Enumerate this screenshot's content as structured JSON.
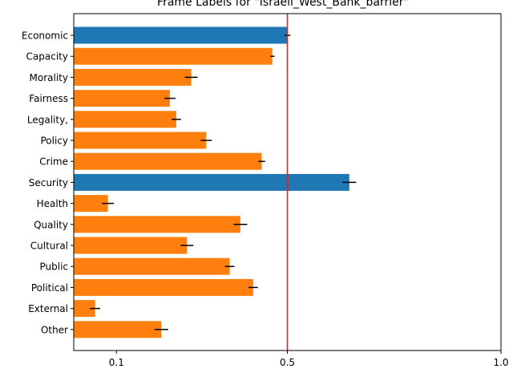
{
  "chart_data": {
    "type": "bar",
    "orientation": "horizontal",
    "title": "Frame Labels for \"Israeli_West_Bank_barrier\"",
    "categories": [
      "Economic",
      "Capacity",
      "Morality",
      "Fairness",
      "Legality,",
      "Policy",
      "Crime",
      "Security",
      "Health",
      "Quality",
      "Cultural",
      "Public",
      "Political",
      "External",
      "Other"
    ],
    "values": [
      0.5,
      0.465,
      0.275,
      0.225,
      0.24,
      0.31,
      0.44,
      0.645,
      0.08,
      0.39,
      0.265,
      0.365,
      0.42,
      0.05,
      0.205
    ],
    "errors": [
      0.007,
      0.005,
      0.015,
      0.013,
      0.011,
      0.013,
      0.008,
      0.016,
      0.014,
      0.016,
      0.015,
      0.011,
      0.011,
      0.012,
      0.016
    ],
    "highlighted": [
      "Economic",
      "Security"
    ],
    "colors": {
      "default": "#ff7f0e",
      "highlight": "#1f77b4",
      "reference_line": "#d62728",
      "error_bar": "#000000"
    },
    "reference_line": 0.5,
    "xlim": [
      0.0,
      1.0
    ],
    "xticks": [
      {
        "value": 0.1,
        "label": "0.1"
      },
      {
        "value": 0.5,
        "label": "0.5"
      },
      {
        "value": 1.0,
        "label": "1.0"
      }
    ],
    "xlabel": "",
    "ylabel": "",
    "grid": false,
    "legend": "none"
  }
}
